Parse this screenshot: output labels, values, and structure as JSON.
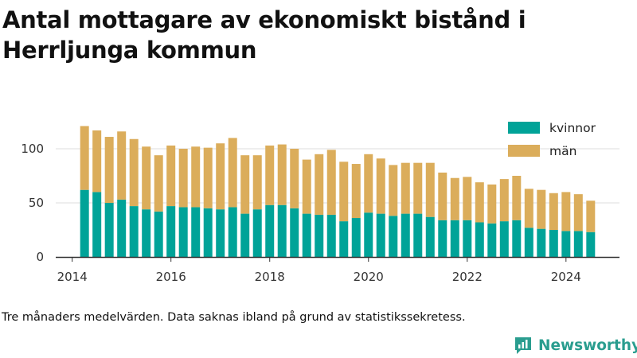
{
  "title": "Antal mottagare av ekonomiskt bistånd i Herrljunga kommun",
  "note": "Tre månaders medelvärden. Data saknas ibland på grund av statistikssekretess.",
  "brand": {
    "name": "Newsworthy",
    "icon": "newsworthy-logo-icon"
  },
  "colors": {
    "kvinnor": "#00a398",
    "man": "#dbad5b",
    "axis": "#333333",
    "grid": "#dddddd",
    "brand": "#2a9d8f"
  },
  "chart_data": {
    "type": "bar",
    "stacked": true,
    "x_type": "time",
    "x": [
      "2014-04",
      "2014-07",
      "2014-10",
      "2015-01",
      "2015-04",
      "2015-07",
      "2015-10",
      "2016-01",
      "2016-04",
      "2016-07",
      "2016-10",
      "2017-01",
      "2017-04",
      "2017-07",
      "2017-10",
      "2018-01",
      "2018-04",
      "2018-07",
      "2018-10",
      "2019-01",
      "2019-04",
      "2019-07",
      "2019-10",
      "2020-01",
      "2020-04",
      "2020-07",
      "2020-10",
      "2021-01",
      "2021-04",
      "2021-07",
      "2021-10",
      "2022-01",
      "2022-04",
      "2022-07",
      "2022-10",
      "2023-01",
      "2023-04",
      "2023-07",
      "2023-10",
      "2024-01",
      "2024-04",
      "2024-07"
    ],
    "series": [
      {
        "name": "kvinnor",
        "values": [
          62,
          60,
          50,
          53,
          47,
          44,
          42,
          47,
          46,
          46,
          45,
          44,
          46,
          40,
          44,
          48,
          48,
          45,
          40,
          39,
          39,
          33,
          36,
          41,
          40,
          38,
          40,
          40,
          37,
          34,
          34,
          34,
          32,
          31,
          33,
          34,
          27,
          26,
          25,
          24,
          24,
          23
        ]
      },
      {
        "name": "män",
        "values": [
          59,
          57,
          61,
          63,
          62,
          58,
          52,
          56,
          54,
          56,
          56,
          61,
          64,
          54,
          50,
          55,
          56,
          55,
          50,
          56,
          60,
          55,
          50,
          54,
          51,
          47,
          47,
          47,
          50,
          44,
          39,
          40,
          37,
          36,
          39,
          41,
          36,
          36,
          34,
          36,
          34,
          29
        ]
      }
    ],
    "xlabel": "",
    "ylabel": "",
    "xticks": [
      "2014",
      "2016",
      "2018",
      "2020",
      "2022",
      "2024"
    ],
    "yticks": [
      0,
      50,
      100
    ],
    "ylim": [
      0,
      130
    ],
    "xlim": [
      "2013-09",
      "2025-02"
    ],
    "grid": "horizontal",
    "legend_position": "top-right"
  }
}
